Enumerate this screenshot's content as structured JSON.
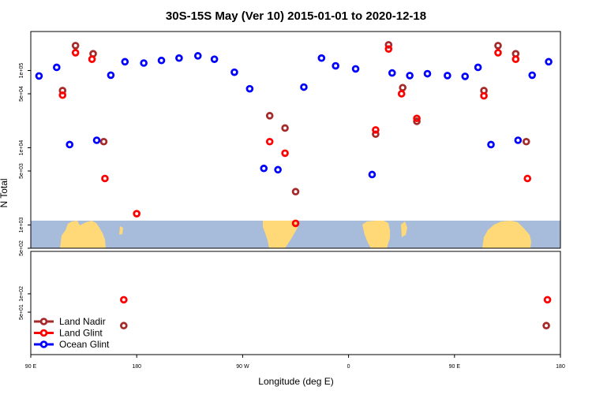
{
  "chart_data": {
    "type": "scatter",
    "title": "30S-15S May (Ver 10)   2015-01-01 to 2020-12-18",
    "xlabel": "Longitude (deg E)",
    "ylabel": "N Total",
    "x_tick_labels": [
      "90 E",
      "180",
      "90 W",
      "0",
      "90 E",
      "180"
    ],
    "x_tick_values": [
      90,
      180,
      270,
      360,
      450,
      540
    ],
    "xlim": [
      90,
      540
    ],
    "y_scale": "log",
    "upper_panel": {
      "ylim": [
        500,
        320000
      ],
      "y_ticks": [
        {
          "label": "5e+02",
          "value": 500
        },
        {
          "label": "1e+03",
          "value": 1000
        },
        {
          "label": "5e+03",
          "value": 5000
        },
        {
          "label": "1e+04",
          "value": 10000
        },
        {
          "label": "5e+04",
          "value": 50000
        },
        {
          "label": "1e+05",
          "value": 100000
        }
      ]
    },
    "lower_panel": {
      "ylim": [
        10,
        500
      ],
      "y_ticks": [
        {
          "label": "5e+01",
          "value": 50
        },
        {
          "label": "1e+02",
          "value": 100
        }
      ]
    },
    "legend": {
      "placement": "bottom-left",
      "entries": [
        {
          "name": "Land Nadir",
          "color": "#a52a2a"
        },
        {
          "name": "Land Glint",
          "color": "#ff0000"
        },
        {
          "name": "Ocean Glint",
          "color": "#0000ff"
        }
      ]
    },
    "series": [
      {
        "name": "Land Nadir",
        "color": "#a52a2a",
        "points": [
          {
            "x": 117,
            "y": 55000
          },
          {
            "x": 128,
            "y": 210000
          },
          {
            "x": 143,
            "y": 165000
          },
          {
            "x": 152,
            "y": 12000
          },
          {
            "x": 169,
            "y": 30
          },
          {
            "x": 293,
            "y": 26000
          },
          {
            "x": 306,
            "y": 18000
          },
          {
            "x": 315,
            "y": 2700
          },
          {
            "x": 383,
            "y": 15000
          },
          {
            "x": 394,
            "y": 215000
          },
          {
            "x": 406,
            "y": 60000
          },
          {
            "x": 418,
            "y": 22000
          },
          {
            "x": 475,
            "y": 55000
          },
          {
            "x": 487,
            "y": 210000
          },
          {
            "x": 502,
            "y": 165000
          },
          {
            "x": 511,
            "y": 12000
          },
          {
            "x": 528,
            "y": 30
          }
        ]
      },
      {
        "name": "Land Glint",
        "color": "#ff0000",
        "points": [
          {
            "x": 117,
            "y": 48000
          },
          {
            "x": 128,
            "y": 170000
          },
          {
            "x": 142,
            "y": 140000
          },
          {
            "x": 153,
            "y": 4000
          },
          {
            "x": 169,
            "y": 80
          },
          {
            "x": 180,
            "y": 1400
          },
          {
            "x": 293,
            "y": 12000
          },
          {
            "x": 306,
            "y": 8500
          },
          {
            "x": 315,
            "y": 1050
          },
          {
            "x": 383,
            "y": 17000
          },
          {
            "x": 394,
            "y": 190000
          },
          {
            "x": 405,
            "y": 50000
          },
          {
            "x": 418,
            "y": 24000
          },
          {
            "x": 475,
            "y": 47000
          },
          {
            "x": 487,
            "y": 170000
          },
          {
            "x": 502,
            "y": 140000
          },
          {
            "x": 512,
            "y": 4000
          },
          {
            "x": 529,
            "y": 80
          }
        ]
      },
      {
        "name": "Ocean Glint",
        "color": "#0000ff",
        "points": [
          {
            "x": 97,
            "y": 85000
          },
          {
            "x": 112,
            "y": 110000
          },
          {
            "x": 123,
            "y": 11000
          },
          {
            "x": 146,
            "y": 12500
          },
          {
            "x": 158,
            "y": 87000
          },
          {
            "x": 170,
            "y": 130000
          },
          {
            "x": 186,
            "y": 125000
          },
          {
            "x": 201,
            "y": 135000
          },
          {
            "x": 216,
            "y": 145000
          },
          {
            "x": 232,
            "y": 155000
          },
          {
            "x": 246,
            "y": 140000
          },
          {
            "x": 263,
            "y": 95000
          },
          {
            "x": 276,
            "y": 58000
          },
          {
            "x": 288,
            "y": 5400
          },
          {
            "x": 300,
            "y": 5200
          },
          {
            "x": 322,
            "y": 61000
          },
          {
            "x": 337,
            "y": 145000
          },
          {
            "x": 349,
            "y": 115000
          },
          {
            "x": 366,
            "y": 105000
          },
          {
            "x": 380,
            "y": 4500
          },
          {
            "x": 397,
            "y": 93000
          },
          {
            "x": 412,
            "y": 86000
          },
          {
            "x": 427,
            "y": 91000
          },
          {
            "x": 444,
            "y": 86000
          },
          {
            "x": 459,
            "y": 84000
          },
          {
            "x": 470,
            "y": 110000
          },
          {
            "x": 481,
            "y": 11000
          },
          {
            "x": 504,
            "y": 12500
          },
          {
            "x": 516,
            "y": 87000
          },
          {
            "x": 530,
            "y": 130000
          }
        ]
      }
    ]
  }
}
